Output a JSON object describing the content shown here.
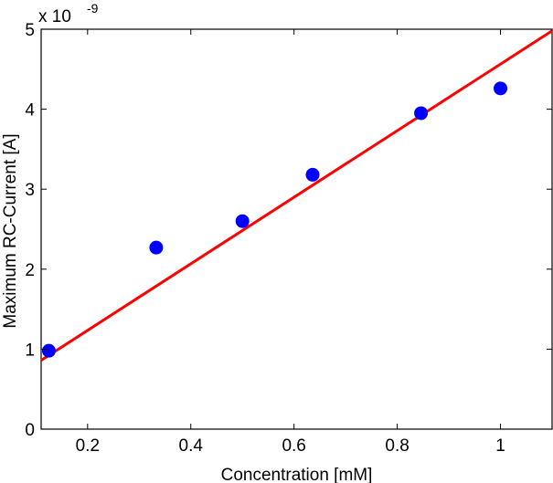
{
  "chart_data": {
    "type": "scatter",
    "xlabel": "Concentration [mM]",
    "ylabel": "Maximum RC-Current [A]",
    "y_multiplier": "x 10",
    "y_multiplier_exponent": "-9",
    "xlim": [
      0.11,
      1.1
    ],
    "ylim": [
      0,
      5
    ],
    "x_ticks": [
      0.2,
      0.4,
      0.6,
      0.8,
      1
    ],
    "x_tick_labels": [
      "0.2",
      "0.4",
      "0.6",
      "0.8",
      "1"
    ],
    "y_ticks": [
      0,
      1,
      2,
      3,
      4,
      5
    ],
    "y_tick_labels": [
      "0",
      "1",
      "2",
      "3",
      "4",
      "5"
    ],
    "grid": false,
    "series": [
      {
        "kind": "markers",
        "color": "#0000ff",
        "x": [
          0.125,
          0.333,
          0.5,
          0.636,
          0.846,
          1.0
        ],
        "y": [
          0.98,
          2.27,
          2.6,
          3.18,
          3.95,
          4.26
        ]
      },
      {
        "kind": "fit-line",
        "color": "#ff0000",
        "x": [
          0.11,
          1.1
        ],
        "y": [
          0.86,
          4.98
        ]
      }
    ]
  }
}
